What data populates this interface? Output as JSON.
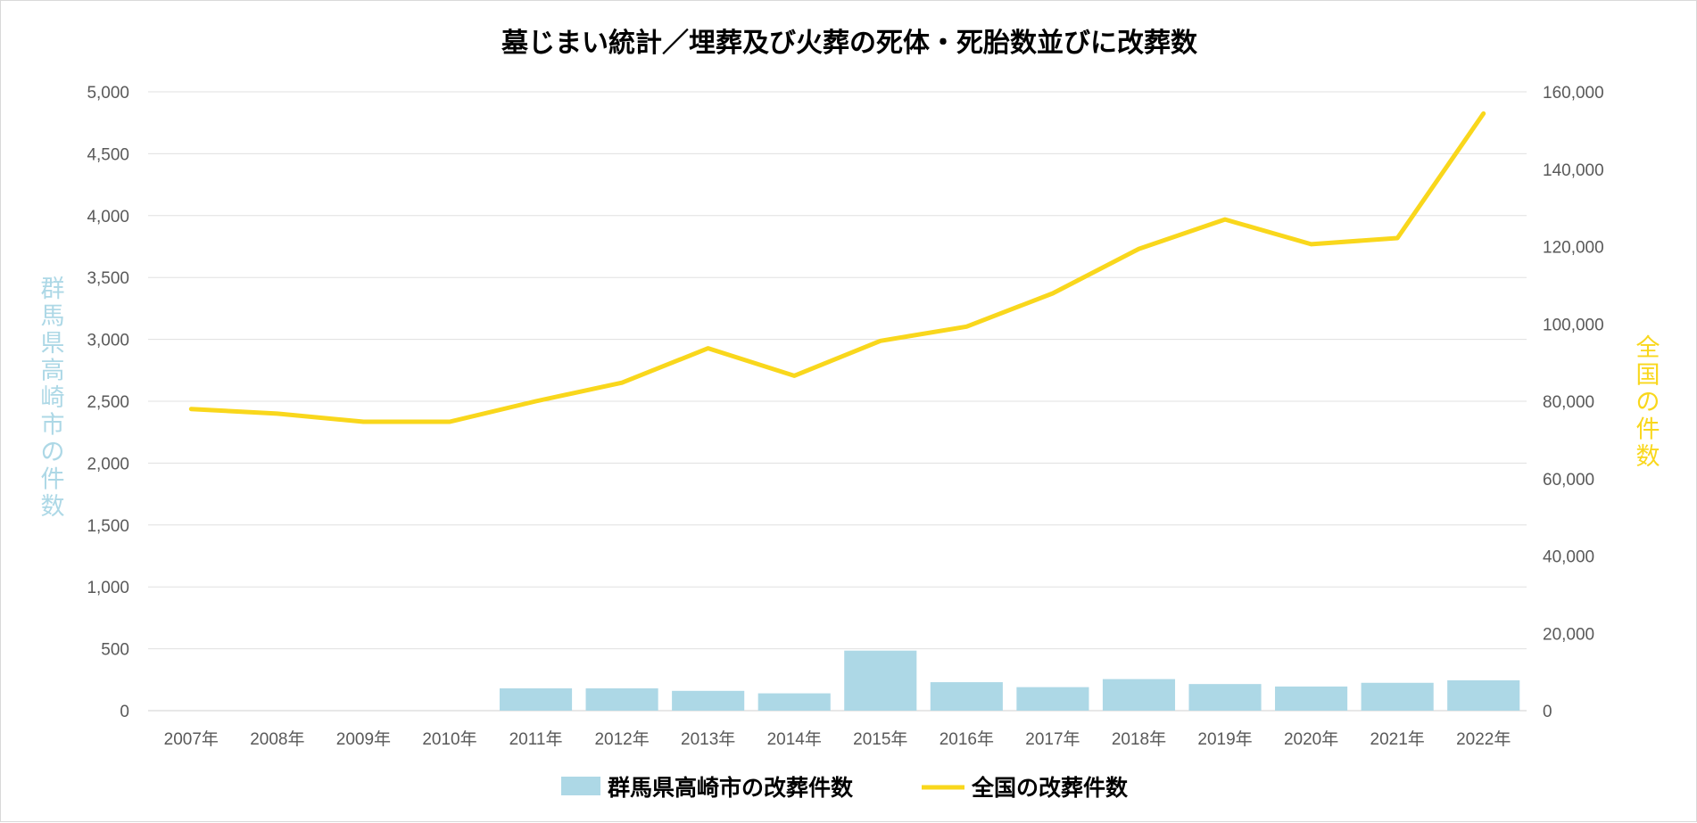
{
  "chart_data": {
    "type": "bar+line",
    "title": "墓じまい統計／埋葬及び火葬の死体・死胎数並びに改葬数",
    "categories": [
      "2007年",
      "2008年",
      "2009年",
      "2010年",
      "2011年",
      "2012年",
      "2013年",
      "2014年",
      "2015年",
      "2016年",
      "2017年",
      "2018年",
      "2019年",
      "2020年",
      "2021年",
      "2022年"
    ],
    "series": [
      {
        "name": "群馬県高崎市の改葬件数",
        "type": "bar",
        "axis": "left",
        "color": "#add8e6",
        "values": [
          null,
          null,
          null,
          null,
          180,
          180,
          160,
          140,
          485,
          230,
          190,
          255,
          215,
          195,
          225,
          245
        ]
      },
      {
        "name": "全国の改葬件数",
        "type": "line",
        "axis": "right",
        "color": "#f9d71c",
        "values": [
          78000,
          76800,
          74700,
          74700,
          80000,
          84800,
          93700,
          86600,
          95600,
          99300,
          107900,
          119400,
          127000,
          120600,
          122200,
          154400
        ]
      }
    ],
    "y_left": {
      "label": "群馬県高崎市の件数",
      "min": 0,
      "max": 5000,
      "step": 500,
      "ticks": [
        "0",
        "500",
        "1,000",
        "1,500",
        "2,000",
        "2,500",
        "3,000",
        "3,500",
        "4,000",
        "4,500",
        "5,000"
      ],
      "color": "#add8e6"
    },
    "y_right": {
      "label": "全国の件数",
      "min": 0,
      "max": 160000,
      "step": 20000,
      "ticks": [
        "0",
        "20,000",
        "40,000",
        "60,000",
        "80,000",
        "100,000",
        "120,000",
        "140,000",
        "160,000"
      ],
      "color": "#f9d71c"
    },
    "grid": true,
    "legend_position": "bottom"
  }
}
